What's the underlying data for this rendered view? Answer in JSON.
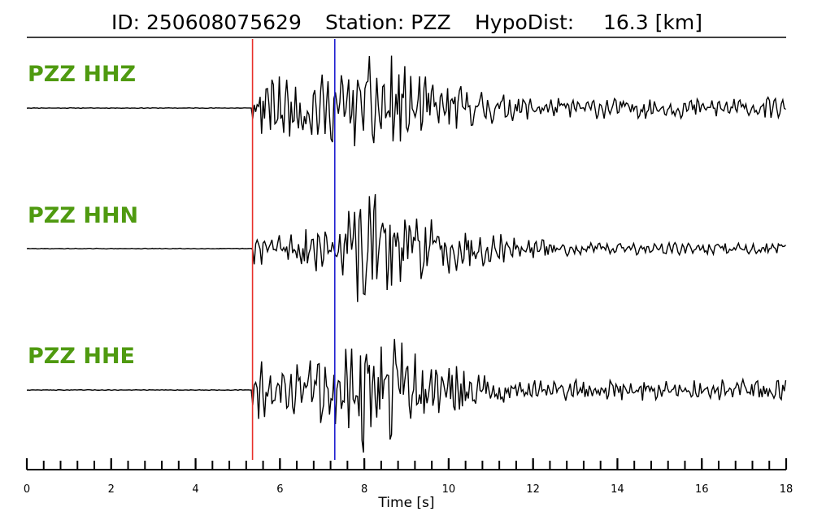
{
  "chart_data": {
    "type": "line",
    "title": {
      "id": "ID: 250608075629",
      "station": "Station: PZZ",
      "hypodist_label": "HypoDist:",
      "hypodist_value": "16.3 [km]"
    },
    "xlabel": "Time [s]",
    "xlim": [
      0,
      18
    ],
    "x_ticks": [
      0,
      2,
      4,
      6,
      8,
      10,
      12,
      14,
      16,
      18
    ],
    "x_minor_step": 0.4,
    "grid": false,
    "markers": [
      {
        "name": "P pick",
        "time": 5.35,
        "color": "#e8302a"
      },
      {
        "name": "S pick",
        "time": 7.3,
        "color": "#1f1fd0"
      }
    ],
    "series": [
      {
        "name": "PZZ HHZ",
        "onset": 5.35,
        "s_time": 7.3,
        "pre_amp": 0.03,
        "p_amp": 0.5,
        "s_amp": 0.95,
        "tail_amp": 0.15,
        "seed": 11
      },
      {
        "name": "PZZ HHN",
        "onset": 5.35,
        "s_time": 7.3,
        "pre_amp": 0.03,
        "p_amp": 0.33,
        "s_amp": 0.92,
        "tail_amp": 0.09,
        "seed": 29
      },
      {
        "name": "PZZ HHE",
        "onset": 5.35,
        "s_time": 7.3,
        "pre_amp": 0.03,
        "p_amp": 0.5,
        "s_amp": 0.98,
        "tail_amp": 0.15,
        "seed": 47
      }
    ]
  }
}
